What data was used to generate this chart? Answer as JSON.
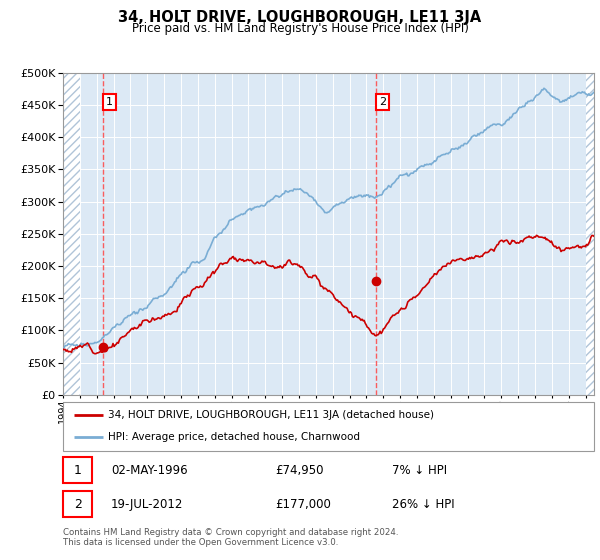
{
  "title": "34, HOLT DRIVE, LOUGHBOROUGH, LE11 3JA",
  "subtitle": "Price paid vs. HM Land Registry's House Price Index (HPI)",
  "hpi_label": "HPI: Average price, detached house, Charnwood",
  "price_label": "34, HOLT DRIVE, LOUGHBOROUGH, LE11 3JA (detached house)",
  "annotation1": {
    "label": "1",
    "date": "02-MAY-1996",
    "price": 74950,
    "note": "7% ↓ HPI"
  },
  "annotation2": {
    "label": "2",
    "date": "19-JUL-2012",
    "price": 177000,
    "note": "26% ↓ HPI"
  },
  "footer": "Contains HM Land Registry data © Crown copyright and database right 2024.\nThis data is licensed under the Open Government Licence v3.0.",
  "price_color": "#cc0000",
  "hpi_color": "#7aadd4",
  "vline_color": "#ff4444",
  "bg_color": "#dce9f5",
  "ylim": [
    0,
    500000
  ],
  "yticks": [
    0,
    50000,
    100000,
    150000,
    200000,
    250000,
    300000,
    350000,
    400000,
    450000,
    500000
  ],
  "vline1_x": 1996.35,
  "vline2_x": 2012.54,
  "xmin": 1994.0,
  "xmax": 2025.5,
  "hatch_left_end": 1995.0,
  "hatch_right_start": 2025.0
}
